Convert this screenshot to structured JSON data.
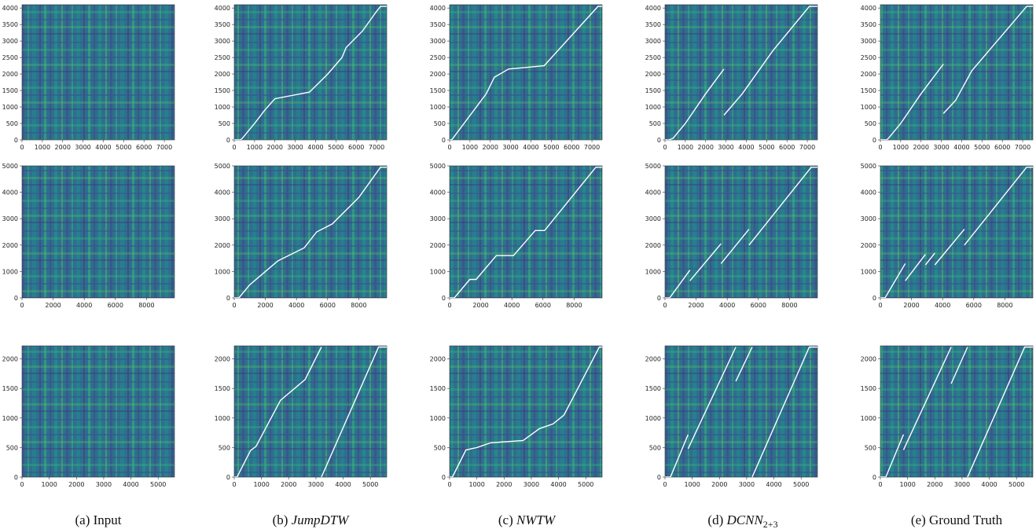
{
  "captions": [
    {
      "label": "(a) Input",
      "parts": [
        {
          "t": "(a) Input",
          "it": false
        }
      ]
    },
    {
      "label": "(b) JumpDTW",
      "parts": [
        {
          "t": "(b) ",
          "it": false
        },
        {
          "t": "JumpDTW",
          "it": true
        }
      ]
    },
    {
      "label": "(c) NWTW",
      "parts": [
        {
          "t": "(c) ",
          "it": false
        },
        {
          "t": "NWTW",
          "it": true
        }
      ]
    },
    {
      "label": "(d) DCNN2+3",
      "parts": [
        {
          "t": "(d) ",
          "it": false
        },
        {
          "t": "DCNN",
          "it": true
        },
        {
          "t": "2+3",
          "it": false,
          "sub": true
        }
      ]
    },
    {
      "label": "(e) Ground Truth",
      "parts": [
        {
          "t": "(e) Ground Truth",
          "it": false
        }
      ]
    }
  ],
  "colors": {
    "bg_dark": "#3b5d8f",
    "bg_mid": "#2f8a8a",
    "bg_light": "#3fb97a",
    "path": "#ffffff"
  },
  "chart_data": [
    {
      "type": "heatmap",
      "row": 0,
      "xlim": [
        0,
        7500
      ],
      "ylim": [
        0,
        4100
      ],
      "xticks": [
        0,
        1000,
        2000,
        3000,
        4000,
        5000,
        6000,
        7000
      ],
      "yticks": [
        0,
        500,
        1000,
        1500,
        2000,
        2500,
        3000,
        3500,
        4000
      ],
      "paths": [
        null,
        [
          [
            [
              0,
              0
            ],
            [
              300,
              0
            ],
            [
              400,
              50
            ],
            [
              1000,
              500
            ],
            [
              1500,
              900
            ],
            [
              2000,
              1250
            ],
            [
              3700,
              1450
            ],
            [
              4600,
              2000
            ],
            [
              5300,
              2500
            ],
            [
              5500,
              2800
            ],
            [
              6300,
              3300
            ],
            [
              7000,
              3900
            ],
            [
              7200,
              4050
            ],
            [
              7500,
              4050
            ]
          ]
        ],
        [
          [
            [
              0,
              0
            ],
            [
              100,
              0
            ],
            [
              1800,
              1400
            ],
            [
              2200,
              1900
            ],
            [
              2900,
              2150
            ],
            [
              3800,
              2200
            ],
            [
              4650,
              2250
            ],
            [
              7300,
              4050
            ],
            [
              7500,
              4050
            ]
          ]
        ],
        [
          [
            [
              0,
              0
            ],
            [
              200,
              0
            ],
            [
              400,
              50
            ],
            [
              1000,
              500
            ],
            [
              2000,
              1400
            ],
            [
              2900,
              2150
            ]
          ],
          [
            [
              2900,
              750
            ],
            [
              3800,
              1400
            ],
            [
              5300,
              2700
            ],
            [
              7100,
              4050
            ],
            [
              7500,
              4050
            ]
          ]
        ],
        [
          [
            [
              0,
              0
            ],
            [
              300,
              0
            ],
            [
              400,
              50
            ],
            [
              1000,
              500
            ],
            [
              2000,
              1400
            ],
            [
              3100,
              2300
            ]
          ],
          [
            [
              3100,
              800
            ],
            [
              3700,
              1200
            ],
            [
              4500,
              2100
            ],
            [
              7200,
              4050
            ],
            [
              7500,
              4050
            ]
          ]
        ]
      ]
    },
    {
      "type": "heatmap",
      "row": 1,
      "xlim": [
        0,
        9800
      ],
      "ylim": [
        0,
        5000
      ],
      "xticks": [
        0,
        2000,
        4000,
        6000,
        8000
      ],
      "yticks": [
        0,
        1000,
        2000,
        3000,
        4000,
        5000
      ],
      "paths": [
        null,
        [
          [
            [
              0,
              0
            ],
            [
              300,
              0
            ],
            [
              1000,
              500
            ],
            [
              1800,
              900
            ],
            [
              2800,
              1400
            ],
            [
              4500,
              1900
            ],
            [
              5300,
              2500
            ],
            [
              6300,
              2800
            ],
            [
              8000,
              3800
            ],
            [
              9400,
              4950
            ],
            [
              9800,
              4950
            ]
          ]
        ],
        [
          [
            [
              0,
              0
            ],
            [
              300,
              0
            ],
            [
              1300,
              700
            ],
            [
              1700,
              700
            ],
            [
              3000,
              1600
            ],
            [
              4100,
              1600
            ],
            [
              5500,
              2550
            ],
            [
              6100,
              2550
            ],
            [
              9400,
              4950
            ],
            [
              9800,
              4950
            ]
          ]
        ],
        [
          [
            [
              0,
              0
            ],
            [
              300,
              0
            ],
            [
              1600,
              1050
            ]
          ],
          [
            [
              1600,
              650
            ],
            [
              3600,
              2050
            ]
          ],
          [
            [
              3600,
              1300
            ],
            [
              5400,
              2600
            ]
          ],
          [
            [
              5400,
              2000
            ],
            [
              9400,
              4950
            ],
            [
              9800,
              4950
            ]
          ]
        ],
        [
          [
            [
              0,
              0
            ],
            [
              300,
              0
            ],
            [
              1600,
              1300
            ]
          ],
          [
            [
              1600,
              650
            ],
            [
              2900,
              1650
            ]
          ],
          [
            [
              2900,
              1250
            ],
            [
              3500,
              1700
            ]
          ],
          [
            [
              3500,
              1250
            ],
            [
              5400,
              2600
            ]
          ],
          [
            [
              5400,
              2000
            ],
            [
              9400,
              4950
            ],
            [
              9800,
              4950
            ]
          ]
        ]
      ]
    },
    {
      "type": "heatmap",
      "row": 2,
      "xlim": [
        0,
        5600
      ],
      "ylim": [
        0,
        2220
      ],
      "xticks": [
        0,
        1000,
        2000,
        3000,
        4000,
        5000
      ],
      "yticks": [
        0,
        500,
        1000,
        1500,
        2000
      ],
      "paths": [
        null,
        [
          [
            [
              0,
              0
            ],
            [
              100,
              0
            ],
            [
              600,
              450
            ],
            [
              800,
              520
            ],
            [
              1700,
              1300
            ],
            [
              2600,
              1650
            ],
            [
              3200,
              2200
            ]
          ],
          [
            [
              3200,
              0
            ],
            [
              5300,
              2200
            ],
            [
              5600,
              2200
            ]
          ]
        ],
        [
          [
            [
              0,
              0
            ],
            [
              100,
              0
            ],
            [
              600,
              460
            ],
            [
              1000,
              500
            ],
            [
              1500,
              580
            ],
            [
              2700,
              620
            ],
            [
              3300,
              820
            ],
            [
              3800,
              900
            ],
            [
              4200,
              1050
            ],
            [
              5500,
              2200
            ],
            [
              5600,
              2200
            ]
          ]
        ],
        [
          [
            [
              0,
              0
            ],
            [
              200,
              0
            ],
            [
              850,
              720
            ]
          ],
          [
            [
              850,
              480
            ],
            [
              2600,
              2200
            ]
          ],
          [
            [
              2600,
              1620
            ],
            [
              3200,
              2200
            ]
          ],
          [
            [
              3200,
              0
            ],
            [
              5300,
              2200
            ],
            [
              5600,
              2200
            ]
          ]
        ],
        [
          [
            [
              0,
              0
            ],
            [
              200,
              0
            ],
            [
              850,
              720
            ]
          ],
          [
            [
              850,
              460
            ],
            [
              2600,
              2200
            ]
          ],
          [
            [
              2600,
              1580
            ],
            [
              3200,
              2200
            ]
          ],
          [
            [
              3200,
              0
            ],
            [
              5300,
              2200
            ],
            [
              5600,
              2200
            ]
          ]
        ]
      ]
    }
  ]
}
